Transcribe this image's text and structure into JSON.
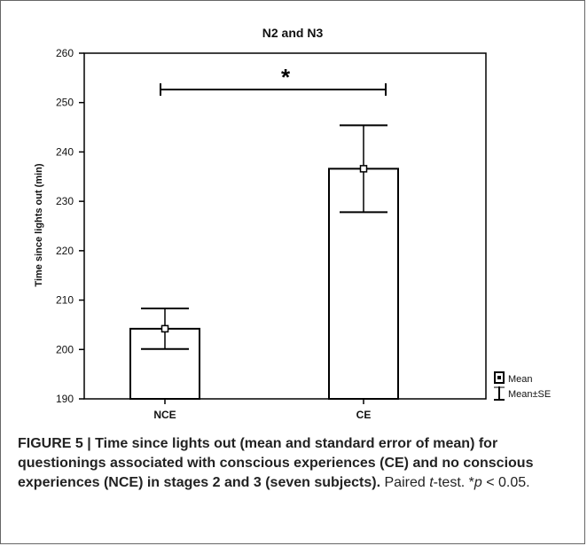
{
  "chart_data": {
    "type": "bar",
    "title": "N2 and N3",
    "ylabel": "Time since lights out (min)",
    "xlabel": "",
    "categories": [
      "NCE",
      "CE"
    ],
    "values": [
      204.2,
      236.6
    ],
    "se_lower": [
      200.1,
      227.8
    ],
    "se_upper": [
      208.3,
      245.4
    ],
    "ylim": [
      190,
      260
    ],
    "yticks": [
      "190",
      "200",
      "210",
      "220",
      "230",
      "240",
      "250",
      "260"
    ],
    "grid": false,
    "significance": {
      "label": "*",
      "between": [
        "NCE",
        "CE"
      ]
    },
    "legend": {
      "placement": "bottom-right",
      "entries": [
        {
          "name": "Mean",
          "symbol": "square-marker"
        },
        {
          "name": "Mean±SE",
          "symbol": "error-whisker"
        }
      ]
    },
    "colors": {
      "bar_fill": "#ffffff",
      "stroke": "#000000"
    }
  },
  "caption": {
    "bold": "FIGURE 5 | Time since lights out (mean and standard error of mean) for questionings associated with conscious experiences (CE) and no conscious experiences (NCE) in stages 2 and 3 (seven subjects).",
    "rest_1": " Paired ",
    "rest_italic_t": "t",
    "rest_2": "-test. *",
    "rest_italic_p": "p",
    "rest_3": " < 0.05."
  }
}
